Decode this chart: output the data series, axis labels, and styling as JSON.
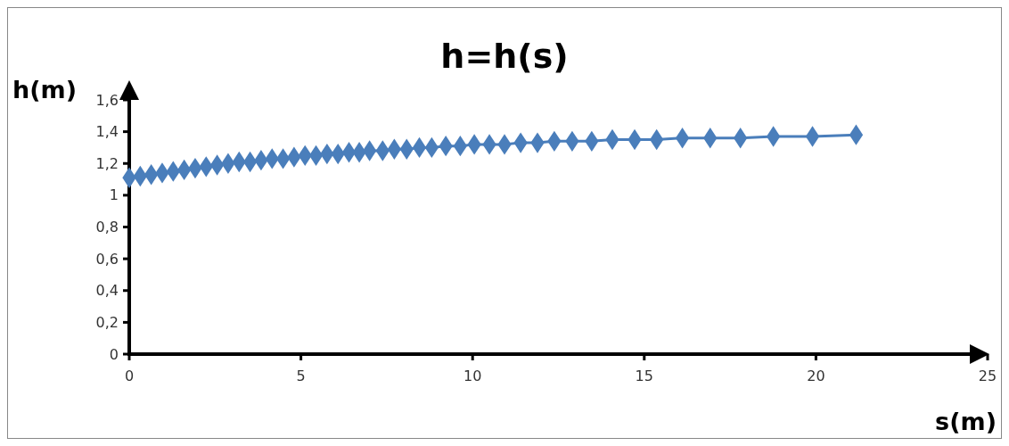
{
  "chart_data": {
    "type": "line",
    "title": "h=h(s)",
    "xlabel": "s(m)",
    "ylabel": "h(m)",
    "xlim": [
      0,
      25
    ],
    "xticks": [
      0,
      5,
      10,
      15,
      20,
      25
    ],
    "ylim": [
      0,
      1.6
    ],
    "yticks": [
      0,
      {
        "value": 0.2,
        "label": "0,2"
      },
      {
        "value": 0.4,
        "label": "0,4"
      },
      {
        "value": 0.6,
        "label": "0,6"
      },
      {
        "value": 0.8,
        "label": "0,8"
      },
      1,
      {
        "value": 1.2,
        "label": "1,2"
      },
      {
        "value": 1.4,
        "label": "1,4"
      },
      {
        "value": 1.6,
        "label": "1,6"
      }
    ],
    "grid": false,
    "marker": "diamond",
    "line_style": "solid",
    "x": [
      0,
      0.32,
      0.64,
      0.96,
      1.28,
      1.6,
      1.92,
      2.24,
      2.56,
      2.88,
      3.2,
      3.52,
      3.84,
      4.16,
      4.48,
      4.8,
      5.12,
      5.44,
      5.76,
      6.08,
      6.4,
      6.7,
      7.0,
      7.38,
      7.72,
      8.08,
      8.45,
      8.81,
      9.22,
      9.64,
      10.05,
      10.49,
      10.93,
      11.4,
      11.89,
      12.38,
      12.9,
      13.47,
      14.07,
      14.72,
      15.36,
      16.11,
      16.92,
      17.8,
      18.76,
      19.9,
      21.17
    ],
    "series": [
      {
        "color": "#4a7ebb",
        "values": [
          1.11,
          1.12,
          1.13,
          1.14,
          1.15,
          1.16,
          1.17,
          1.18,
          1.19,
          1.2,
          1.21,
          1.21,
          1.22,
          1.23,
          1.23,
          1.24,
          1.25,
          1.25,
          1.26,
          1.26,
          1.27,
          1.27,
          1.28,
          1.28,
          1.29,
          1.29,
          1.3,
          1.3,
          1.31,
          1.31,
          1.32,
          1.32,
          1.32,
          1.33,
          1.33,
          1.34,
          1.34,
          1.34,
          1.35,
          1.35,
          1.35,
          1.36,
          1.36,
          1.36,
          1.37,
          1.37,
          1.38
        ]
      }
    ]
  }
}
